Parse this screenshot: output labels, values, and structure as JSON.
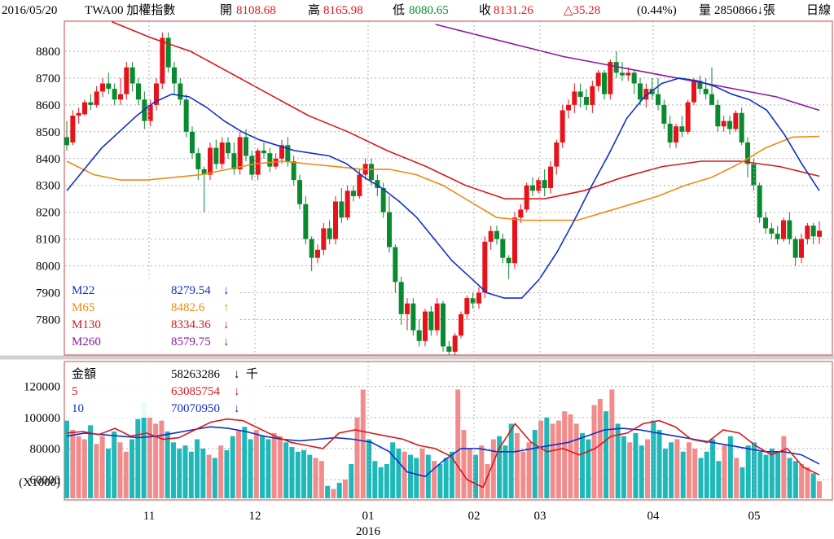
{
  "header": {
    "date": "2016/05/20",
    "symbol": "TWA00 加權指數",
    "open_label": "開",
    "open": "8108.68",
    "high_label": "高",
    "high": "8165.98",
    "low_label": "低",
    "low": "8080.65",
    "close_label": "收",
    "close": "8131.26",
    "change": "△35.28",
    "change_pct": "(0.44%)",
    "volume_label": "量",
    "volume": "2850866↓張",
    "period": "日線"
  },
  "colors": {
    "up": "#e8121b",
    "down": "#0a8a2e",
    "m22": "#1030c8",
    "m65": "#f08a10",
    "m130": "#d81818",
    "m260": "#8a1aa0",
    "vol_up": "#f28c8c",
    "vol_down": "#1fb8b8",
    "frame": "#cc4444",
    "grid": "#b0b0b0"
  },
  "chart_data": [
    {
      "type": "candlestick",
      "title": "",
      "ylim": [
        7680,
        8900
      ],
      "yticks": [
        7800,
        7900,
        8000,
        8100,
        8200,
        8300,
        8400,
        8500,
        8600,
        8700,
        8800
      ],
      "legend": [
        {
          "name": "M22",
          "value": "8279.54",
          "arrow": "↓"
        },
        {
          "name": "M65",
          "value": "8482.6",
          "arrow": "↑"
        },
        {
          "name": "M130",
          "value": "8334.36",
          "arrow": "↓"
        },
        {
          "name": "M260",
          "value": "8579.75",
          "arrow": "↓"
        }
      ],
      "candles": [
        [
          8480,
          8540,
          8430,
          8450
        ],
        [
          8460,
          8580,
          8450,
          8560
        ],
        [
          8560,
          8590,
          8530,
          8570
        ],
        [
          8565,
          8620,
          8560,
          8610
        ],
        [
          8610,
          8640,
          8580,
          8600
        ],
        [
          8600,
          8670,
          8590,
          8650
        ],
        [
          8650,
          8700,
          8630,
          8680
        ],
        [
          8680,
          8720,
          8640,
          8660
        ],
        [
          8660,
          8680,
          8600,
          8620
        ],
        [
          8620,
          8700,
          8600,
          8640
        ],
        [
          8640,
          8760,
          8620,
          8740
        ],
        [
          8740,
          8760,
          8650,
          8680
        ],
        [
          8680,
          8700,
          8600,
          8620
        ],
        [
          8620,
          8650,
          8510,
          8540
        ],
        [
          8540,
          8620,
          8520,
          8600
        ],
        [
          8600,
          8700,
          8580,
          8680
        ],
        [
          8680,
          8870,
          8660,
          8850
        ],
        [
          8850,
          8870,
          8720,
          8740
        ],
        [
          8740,
          8760,
          8640,
          8680
        ],
        [
          8680,
          8700,
          8600,
          8620
        ],
        [
          8620,
          8640,
          8480,
          8500
        ],
        [
          8500,
          8520,
          8400,
          8420
        ],
        [
          8420,
          8440,
          8320,
          8360
        ],
        [
          8360,
          8370,
          8200,
          8340
        ],
        [
          8340,
          8460,
          8320,
          8440
        ],
        [
          8440,
          8470,
          8360,
          8380
        ],
        [
          8380,
          8480,
          8360,
          8460
        ],
        [
          8460,
          8480,
          8400,
          8420
        ],
        [
          8420,
          8460,
          8340,
          8360
        ],
        [
          8360,
          8500,
          8340,
          8480
        ],
        [
          8480,
          8510,
          8390,
          8410
        ],
        [
          8410,
          8430,
          8320,
          8340
        ],
        [
          8340,
          8440,
          8320,
          8430
        ],
        [
          8430,
          8460,
          8400,
          8420
        ],
        [
          8420,
          8440,
          8350,
          8370
        ],
        [
          8370,
          8420,
          8360,
          8400
        ],
        [
          8400,
          8470,
          8380,
          8450
        ],
        [
          8450,
          8480,
          8370,
          8390
        ],
        [
          8390,
          8410,
          8300,
          8320
        ],
        [
          8320,
          8340,
          8210,
          8230
        ],
        [
          8230,
          8260,
          8080,
          8100
        ],
        [
          8100,
          8110,
          7980,
          8030
        ],
        [
          8030,
          8080,
          8010,
          8060
        ],
        [
          8060,
          8160,
          8040,
          8140
        ],
        [
          8140,
          8170,
          8080,
          8100
        ],
        [
          8100,
          8260,
          8080,
          8240
        ],
        [
          8240,
          8290,
          8160,
          8180
        ],
        [
          8180,
          8300,
          8170,
          8280
        ],
        [
          8280,
          8300,
          8240,
          8260
        ],
        [
          8260,
          8360,
          8250,
          8340
        ],
        [
          8340,
          8400,
          8320,
          8380
        ],
        [
          8380,
          8400,
          8300,
          8320
        ],
        [
          8320,
          8340,
          8260,
          8290
        ],
        [
          8290,
          8310,
          8180,
          8200
        ],
        [
          8200,
          8260,
          8050,
          8070
        ],
        [
          8070,
          8080,
          7900,
          7940
        ],
        [
          7940,
          7960,
          7780,
          7820
        ],
        [
          7820,
          7880,
          7760,
          7860
        ],
        [
          7860,
          7880,
          7740,
          7760
        ],
        [
          7760,
          7800,
          7700,
          7720
        ],
        [
          7720,
          7840,
          7700,
          7830
        ],
        [
          7830,
          7850,
          7740,
          7760
        ],
        [
          7760,
          7880,
          7740,
          7860
        ],
        [
          7860,
          7870,
          7680,
          7700
        ],
        [
          7700,
          7720,
          7660,
          7680
        ],
        [
          7680,
          7750,
          7660,
          7740
        ],
        [
          7740,
          7830,
          7730,
          7820
        ],
        [
          7820,
          7890,
          7800,
          7880
        ],
        [
          7880,
          7900,
          7840,
          7860
        ],
        [
          7860,
          7920,
          7840,
          7900
        ],
        [
          7900,
          8110,
          7880,
          8090
        ],
        [
          8090,
          8150,
          8060,
          8130
        ],
        [
          8130,
          8150,
          8080,
          8100
        ],
        [
          8100,
          8120,
          8010,
          8030
        ],
        [
          8030,
          8040,
          7950,
          8010
        ],
        [
          8010,
          8200,
          7990,
          8180
        ],
        [
          8180,
          8230,
          8160,
          8210
        ],
        [
          8210,
          8310,
          8200,
          8300
        ],
        [
          8300,
          8330,
          8260,
          8280
        ],
        [
          8280,
          8330,
          8270,
          8320
        ],
        [
          8320,
          8360,
          8260,
          8290
        ],
        [
          8290,
          8390,
          8270,
          8370
        ],
        [
          8370,
          8470,
          8340,
          8460
        ],
        [
          8460,
          8600,
          8440,
          8580
        ],
        [
          8580,
          8620,
          8550,
          8600
        ],
        [
          8600,
          8680,
          8570,
          8650
        ],
        [
          8650,
          8680,
          8590,
          8630
        ],
        [
          8630,
          8660,
          8580,
          8600
        ],
        [
          8600,
          8690,
          8570,
          8670
        ],
        [
          8670,
          8730,
          8650,
          8720
        ],
        [
          8720,
          8730,
          8620,
          8640
        ],
        [
          8640,
          8770,
          8620,
          8760
        ],
        [
          8760,
          8800,
          8700,
          8720
        ],
        [
          8720,
          8760,
          8690,
          8710
        ],
        [
          8710,
          8740,
          8690,
          8720
        ],
        [
          8720,
          8730,
          8640,
          8680
        ],
        [
          8680,
          8700,
          8600,
          8620
        ],
        [
          8620,
          8680,
          8590,
          8660
        ],
        [
          8660,
          8700,
          8620,
          8640
        ],
        [
          8640,
          8700,
          8580,
          8600
        ],
        [
          8600,
          8620,
          8510,
          8530
        ],
        [
          8530,
          8560,
          8440,
          8460
        ],
        [
          8460,
          8530,
          8440,
          8520
        ],
        [
          8520,
          8560,
          8480,
          8500
        ],
        [
          8500,
          8620,
          8490,
          8610
        ],
        [
          8610,
          8700,
          8600,
          8690
        ],
        [
          8690,
          8710,
          8640,
          8660
        ],
        [
          8660,
          8700,
          8620,
          8640
        ],
        [
          8640,
          8740,
          8600,
          8600
        ],
        [
          8600,
          8620,
          8500,
          8520
        ],
        [
          8520,
          8560,
          8500,
          8540
        ],
        [
          8540,
          8560,
          8490,
          8510
        ],
        [
          8510,
          8580,
          8500,
          8570
        ],
        [
          8570,
          8590,
          8450,
          8460
        ],
        [
          8460,
          8480,
          8330,
          8380
        ],
        [
          8380,
          8400,
          8280,
          8300
        ],
        [
          8300,
          8310,
          8160,
          8180
        ],
        [
          8180,
          8200,
          8120,
          8140
        ],
        [
          8140,
          8160,
          8100,
          8120
        ],
        [
          8120,
          8150,
          8080,
          8100
        ],
        [
          8100,
          8180,
          8090,
          8170
        ],
        [
          8170,
          8200,
          8080,
          8100
        ],
        [
          8100,
          8110,
          8000,
          8030
        ],
        [
          8030,
          8120,
          8010,
          8100
        ],
        [
          8100,
          8160,
          8080,
          8150
        ],
        [
          8150,
          8160,
          8080,
          8110
        ],
        [
          8108.68,
          8165.98,
          8080.65,
          8131.26
        ]
      ],
      "m22": [
        8280,
        8360,
        8440,
        8500,
        8560,
        8610,
        8640,
        8630,
        8590,
        8540,
        8500,
        8470,
        8450,
        8430,
        8420,
        8410,
        8380,
        8330,
        8290,
        8240,
        8180,
        8100,
        8020,
        7960,
        7900,
        7880,
        7880,
        7950,
        8050,
        8170,
        8300,
        8420,
        8550,
        8630,
        8680,
        8700,
        8690,
        8670,
        8640,
        8620,
        8580,
        8490,
        8380,
        8280
      ],
      "m65": [
        8390,
        8340,
        8320,
        8320,
        8330,
        8340,
        8360,
        8380,
        8390,
        8380,
        8370,
        8360,
        8360,
        8340,
        8300,
        8240,
        8180,
        8170,
        8170,
        8170,
        8200,
        8230,
        8260,
        8300,
        8330,
        8380,
        8440,
        8480,
        8482.6
      ],
      "m130": [
        8910,
        8850,
        8800,
        8720,
        8640,
        8560,
        8500,
        8430,
        8370,
        8300,
        8250,
        8250,
        8280,
        8330,
        8370,
        8390,
        8390,
        8370,
        8334.36
      ],
      "m260": [
        8900,
        8860,
        8820,
        8780,
        8750,
        8720,
        8690,
        8660,
        8630,
        8579.75
      ],
      "xlabels": [
        "11",
        "12",
        "01",
        "02",
        "03",
        "04",
        "05"
      ],
      "year_label": "2016"
    },
    {
      "type": "bar",
      "title": "",
      "ylim": [
        48000,
        135000
      ],
      "yticks": [
        60000,
        80000,
        100000,
        120000
      ],
      "unit_label": "(X1000)",
      "legend": [
        {
          "name": "金額",
          "value": "58263286",
          "arrow": "↓",
          "suffix": "千"
        },
        {
          "name": "5",
          "value": "63085754",
          "arrow": "↓"
        },
        {
          "name": "10",
          "value": "70070950",
          "arrow": "↓"
        }
      ],
      "values": [
        98000,
        92000,
        88000,
        86000,
        95000,
        83000,
        88000,
        80000,
        91000,
        84000,
        78000,
        86000,
        99000,
        110000,
        102000,
        96000,
        98000,
        91000,
        84000,
        80000,
        82000,
        78000,
        86000,
        80000,
        76000,
        74000,
        82000,
        79000,
        88000,
        92000,
        94000,
        86000,
        92000,
        88000,
        86000,
        90000,
        88000,
        84000,
        81000,
        78000,
        79000,
        76000,
        74000,
        72000,
        56000,
        54000,
        58000,
        60000,
        70000,
        100000,
        118000,
        86000,
        72000,
        68000,
        70000,
        84000,
        80000,
        78000,
        76000,
        74000,
        80000,
        76000,
        72000,
        70000,
        74000,
        78000,
        118000,
        92000,
        80000,
        76000,
        82000,
        70000,
        86000,
        88000,
        82000,
        96000,
        90000,
        78000,
        84000,
        92000,
        98000,
        100000,
        96000,
        98000,
        104000,
        102000,
        96000,
        90000,
        86000,
        108000,
        112000,
        104000,
        118000,
        96000,
        88000,
        84000,
        90000,
        82000,
        86000,
        98000,
        92000,
        80000,
        84000,
        86000,
        78000,
        84000,
        80000,
        74000,
        78000,
        86000,
        72000,
        82000,
        88000,
        74000,
        68000,
        82000,
        84000,
        78000,
        76000,
        80000,
        78000,
        88000,
        74000,
        72000,
        70000,
        68000,
        64000,
        59000
      ],
      "ma5": [
        90000,
        91000,
        89000,
        93000,
        88000,
        90000,
        86000,
        87000,
        92000,
        97000,
        99000,
        98000,
        93000,
        88000,
        84000,
        82000,
        80000,
        90000,
        92000,
        90000,
        88000,
        86000,
        82000,
        80000,
        75000,
        60000,
        55000,
        80000,
        96000,
        84000,
        78000,
        80000,
        76000,
        80000,
        88000,
        90000,
        96000,
        98000,
        94000,
        86000,
        84000,
        92000,
        90000,
        82000,
        76000,
        80000,
        68000,
        63085
      ],
      "ma10": [
        88000,
        90000,
        89000,
        88000,
        87000,
        88000,
        90000,
        92000,
        94000,
        93000,
        91000,
        88000,
        86000,
        85000,
        86000,
        87000,
        86000,
        84000,
        78000,
        65000,
        62000,
        72000,
        80000,
        80000,
        78000,
        78000,
        80000,
        82000,
        84000,
        88000,
        92000,
        93000,
        92000,
        90000,
        88000,
        86000,
        84000,
        82000,
        80000,
        78000,
        78000,
        76000,
        70070
      ]
    }
  ]
}
